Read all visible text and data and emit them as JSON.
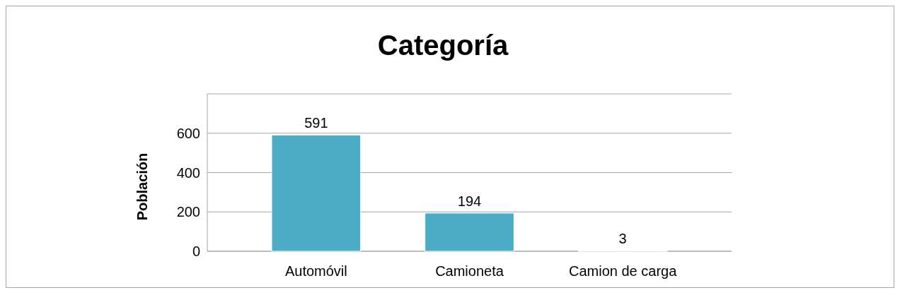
{
  "chart_data": {
    "type": "bar",
    "title": "Categoría",
    "ylabel": "Población",
    "categories": [
      "Automóvil",
      "Camioneta",
      "Camion de carga"
    ],
    "values": [
      591,
      194,
      3
    ],
    "color": "#4bacc6",
    "ylim": [
      0,
      800
    ],
    "yticks": [
      0,
      200,
      400,
      600
    ],
    "grid": "y",
    "data_labels": true
  }
}
